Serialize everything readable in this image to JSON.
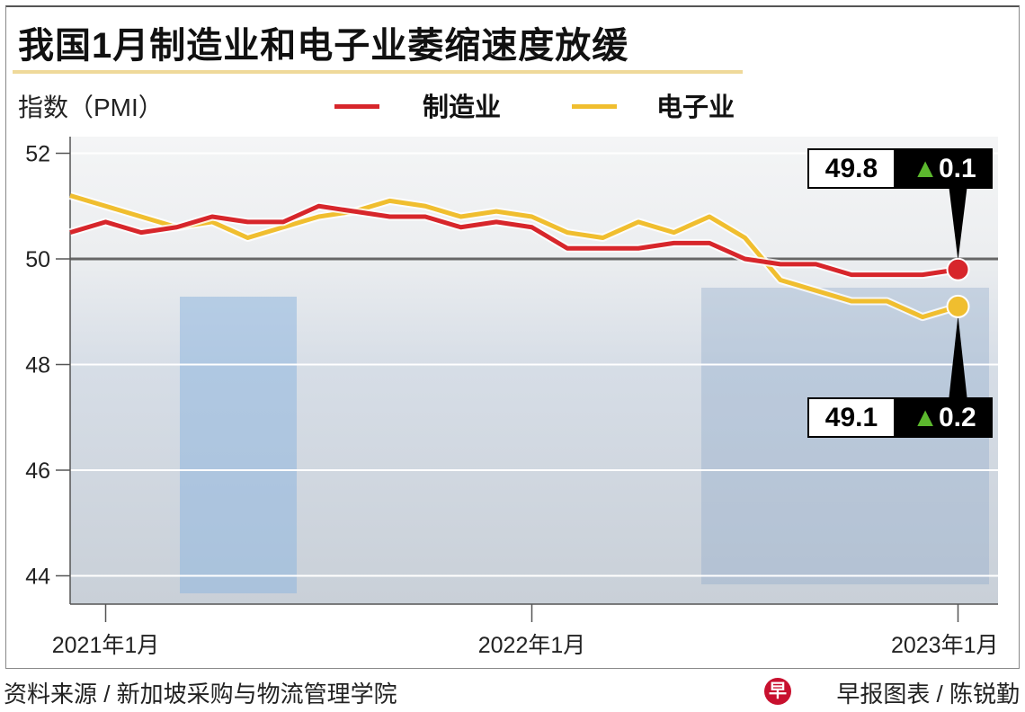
{
  "chart_data": {
    "type": "line",
    "title": "我国1月制造业和电子业萎缩速度放缓",
    "ylabel": "指数（PMI）",
    "ylim": [
      43.4,
      52.3
    ],
    "yticks": [
      44,
      46,
      48,
      50,
      52
    ],
    "xticks": [
      "2021年1月",
      "2022年1月",
      "2023年1月"
    ],
    "x": [
      "2020-12",
      "2021-01",
      "2021-02",
      "2021-03",
      "2021-04",
      "2021-05",
      "2021-06",
      "2021-07",
      "2021-08",
      "2021-09",
      "2021-10",
      "2021-11",
      "2021-12",
      "2022-01",
      "2022-02",
      "2022-03",
      "2022-04",
      "2022-05",
      "2022-06",
      "2022-07",
      "2022-08",
      "2022-09",
      "2022-10",
      "2022-11",
      "2022-12",
      "2023-01"
    ],
    "series": [
      {
        "name": "制造业",
        "color": "#d7262b",
        "values": [
          50.5,
          50.7,
          50.5,
          50.6,
          50.8,
          50.7,
          50.7,
          51.0,
          50.9,
          50.8,
          50.8,
          50.6,
          50.7,
          50.6,
          50.2,
          50.2,
          50.2,
          50.3,
          50.3,
          50.0,
          49.9,
          49.9,
          49.7,
          49.7,
          49.7,
          49.8
        ]
      },
      {
        "name": "电子业",
        "color": "#f0be2f",
        "values": [
          51.2,
          51.0,
          50.8,
          50.6,
          50.7,
          50.4,
          50.6,
          50.8,
          50.9,
          51.1,
          51.0,
          50.8,
          50.9,
          50.8,
          50.5,
          50.4,
          50.7,
          50.5,
          50.8,
          50.4,
          49.6,
          49.4,
          49.2,
          49.2,
          48.9,
          49.1
        ]
      }
    ],
    "reference_line": 50,
    "grid": true,
    "legend": "top",
    "annotations": [
      {
        "series": "制造业",
        "value": "49.8",
        "change": "▲0.1"
      },
      {
        "series": "电子业",
        "value": "49.1",
        "change": "▲0.2"
      }
    ],
    "change_arrow_color": "#5cb82e"
  },
  "source": "资料来源 / 新加坡采购与物流管理学院",
  "credit": "早报图表 / 陈锐勤",
  "logo": "早"
}
